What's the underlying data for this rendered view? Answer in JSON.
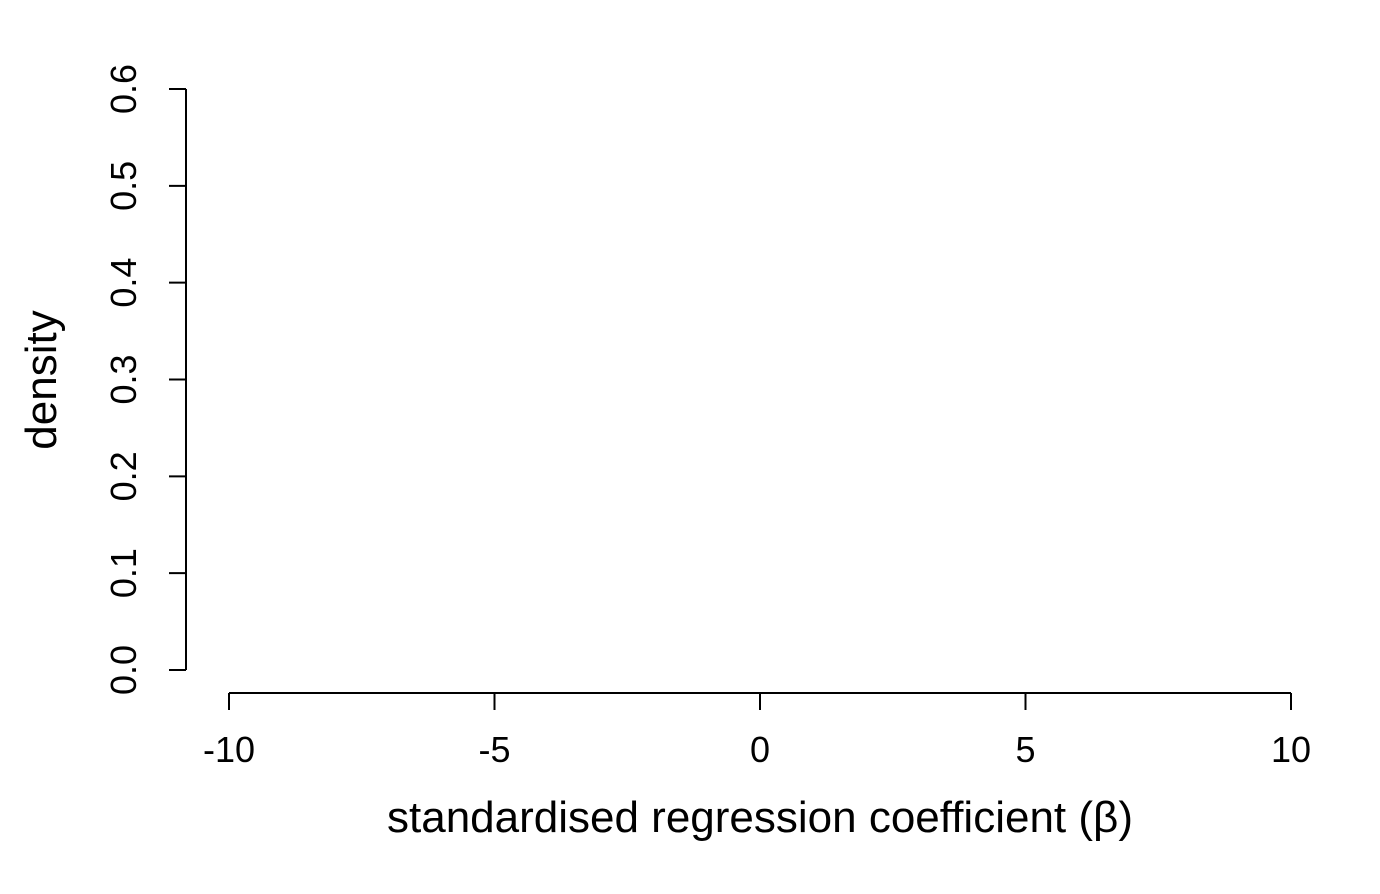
{
  "chart_data": {
    "type": "line",
    "title": "",
    "xlabel": "standardised regression coefficient (β)",
    "ylabel": "density",
    "xlim": [
      -10,
      10
    ],
    "ylim": [
      0,
      0.6
    ],
    "x_ticks": [
      -10,
      -5,
      0,
      5,
      10
    ],
    "x_tick_labels": [
      "-10",
      "-5",
      "0",
      "5",
      "10"
    ],
    "y_ticks": [
      0,
      0.1,
      0.2,
      0.3,
      0.4,
      0.5,
      0.6
    ],
    "y_tick_labels": [
      "0.0",
      "0.1",
      "0.2",
      "0.3",
      "0.4",
      "0.5",
      "0.6"
    ],
    "series": [],
    "grid": false,
    "legend": "none",
    "colors": {
      "axis": "#000000",
      "background": "#ffffff"
    }
  }
}
